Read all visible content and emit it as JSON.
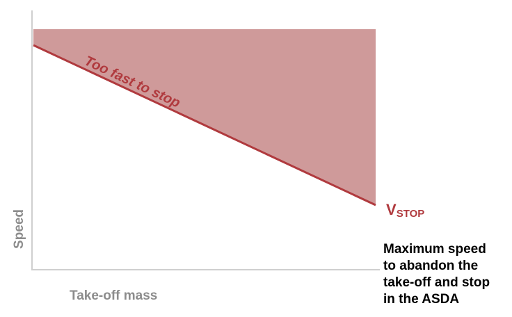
{
  "axes": {
    "y_label": "Speed",
    "x_label": "Take-off mass"
  },
  "region_label": "Too fast to stop",
  "line_label": {
    "main": "V",
    "subscript": "STOP"
  },
  "note": {
    "lines": [
      "Maximum speed",
      "to abandon the",
      "take-off and stop",
      "in the ASDA"
    ]
  }
}
